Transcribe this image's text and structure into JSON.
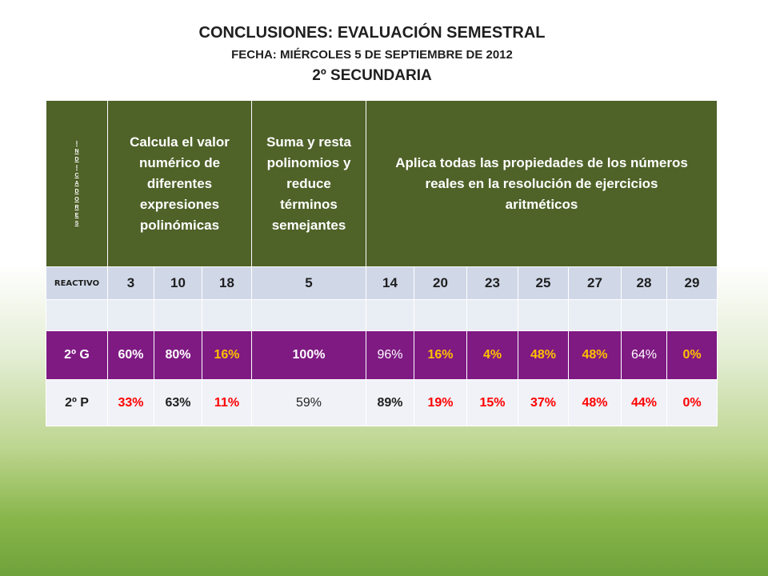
{
  "title": "CONCLUSIONES: EVALUACIÓN SEMESTRAL",
  "date_line": "FECHA: MIÉRCOLES 5 DE SEPTIEMBRE DE 2012",
  "grade": "2º SECUNDARIA",
  "table": {
    "indicadores_label": [
      "I",
      "N",
      "D",
      "I",
      "C",
      "A",
      "D",
      "O",
      "R",
      "E",
      "S"
    ],
    "indicators": [
      "Calcula el valor numérico de diferentes expresiones polinómicas",
      "Suma y resta polinomios y reduce términos semejantes",
      "Aplica todas las propiedades de los números reales en la resolución de ejercicios aritméticos"
    ],
    "reactivo_label": "REACTIVO",
    "reactivos": [
      "3",
      "10",
      "18",
      "5",
      "14",
      "20",
      "23",
      "25",
      "27",
      "28",
      "29"
    ],
    "rows": [
      {
        "label": "2º G",
        "values": [
          "60%",
          "80%",
          "16%",
          "100%",
          "96%",
          "16%",
          "4%",
          "48%",
          "48%",
          "64%",
          "0%"
        ],
        "colors": [
          "#ffffff",
          "#ffffff",
          "#ffc000",
          "#ffffff",
          "#ffffff",
          "#ffc000",
          "#ffc000",
          "#ffc000",
          "#ffc000",
          "#ffffff",
          "#ffc000"
        ]
      },
      {
        "label": "2º P",
        "values": [
          "33%",
          "63%",
          "11%",
          "59%",
          "89%",
          "19%",
          "15%",
          "37%",
          "48%",
          "44%",
          "0%"
        ],
        "colors": [
          "#ff0000",
          "#1f1f1f",
          "#ff0000",
          "#1f1f1f",
          "#1f1f1f",
          "#ff0000",
          "#ff0000",
          "#ff0000",
          "#ff0000",
          "#ff0000",
          "#ff0000"
        ]
      }
    ]
  }
}
